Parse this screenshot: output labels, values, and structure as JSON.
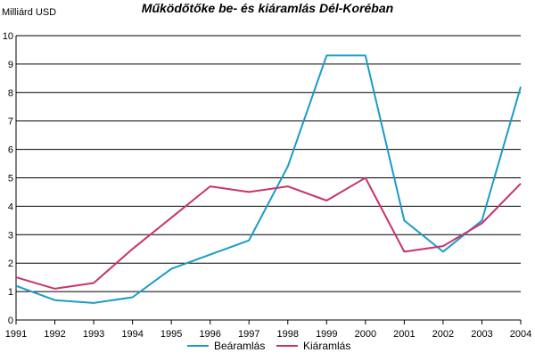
{
  "chart_data": {
    "type": "line",
    "title": "Működőtőke be- és kiáramlás Dél-Koréban",
    "ylabel": "Milliárd USD",
    "xlabel": "",
    "x": [
      1991,
      1992,
      1993,
      1994,
      1995,
      1996,
      1997,
      1998,
      1999,
      2000,
      2001,
      2002,
      2003,
      2004
    ],
    "ylim": [
      0,
      10
    ],
    "yticks": [
      0,
      1,
      2,
      3,
      4,
      5,
      6,
      7,
      8,
      9,
      10
    ],
    "grid": true,
    "legend_position": "bottom",
    "series": [
      {
        "name": "Beáramlás",
        "color": "#1a9bc9",
        "values": [
          1.2,
          0.7,
          0.6,
          0.8,
          1.8,
          2.3,
          2.8,
          5.4,
          9.3,
          9.3,
          3.5,
          2.4,
          3.5,
          8.2
        ]
      },
      {
        "name": "Kiáramlás",
        "color": "#c8336f",
        "values": [
          1.5,
          1.1,
          1.3,
          2.5,
          3.6,
          4.7,
          4.5,
          4.7,
          4.2,
          5.0,
          2.4,
          2.6,
          3.4,
          4.8
        ]
      }
    ]
  }
}
